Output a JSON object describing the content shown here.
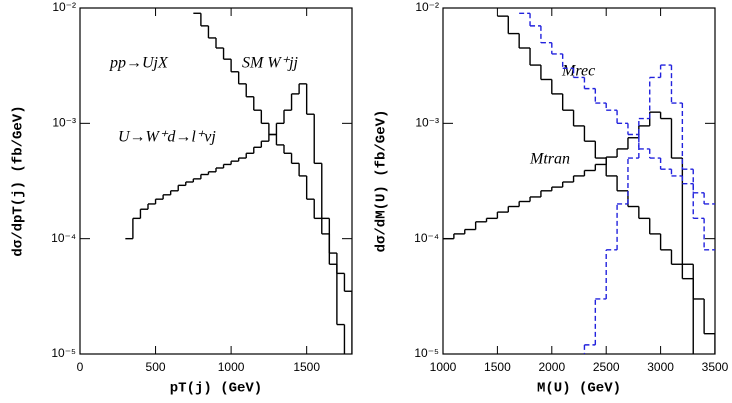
{
  "chart_data": [
    {
      "type": "histogram",
      "xlabel": "pT(j)  (GeV)",
      "ylabel": "dσ/dpT(j)   (fb/GeV)",
      "yscale": "log",
      "xlim": [
        0,
        1800
      ],
      "xticks": [
        0,
        500,
        1000,
        1500
      ],
      "ylim": [
        1e-05,
        0.01
      ],
      "yticks": [
        {
          "value": 1e-05,
          "label": "10⁻⁵"
        },
        {
          "value": 0.0001,
          "label": "10⁻⁴"
        },
        {
          "value": 0.001,
          "label": "10⁻³"
        },
        {
          "value": 0.01,
          "label": "10⁻²"
        }
      ],
      "annotations": [
        "pp→UjX"
      ],
      "bins": [
        300,
        350,
        400,
        450,
        500,
        550,
        600,
        650,
        700,
        750,
        800,
        850,
        900,
        950,
        1000,
        1050,
        1100,
        1150,
        1200,
        1250,
        1300,
        1350,
        1400,
        1450,
        1500,
        1550,
        1600,
        1650,
        1700,
        1750,
        1800
      ],
      "series": [
        {
          "name": "U→W⁺d→l⁺νj",
          "color": "#000000",
          "dashed": false,
          "values": [
            0.0001,
            0.00015,
            0.00018,
            0.0002,
            0.00022,
            0.00024,
            0.00026,
            0.00029,
            0.00031,
            0.00033,
            0.00036,
            0.00038,
            0.00041,
            0.00044,
            0.00047,
            0.0005,
            0.00055,
            0.00062,
            0.0007,
            0.0008,
            0.001,
            0.0013,
            0.0018,
            0.0022,
            0.0012,
            0.00045,
            0.00015,
            6e-05,
            1.8e-05,
            null
          ]
        },
        {
          "name": "SM W⁺jj",
          "color": "#000000",
          "dashed": false,
          "values": [
            null,
            null,
            null,
            null,
            null,
            null,
            null,
            null,
            null,
            0.009,
            0.007,
            0.0055,
            0.0045,
            0.0036,
            0.0028,
            0.0022,
            0.0017,
            0.0013,
            0.001,
            0.0008,
            0.00065,
            0.00055,
            0.00045,
            0.00035,
            0.00022,
            0.00015,
            0.00011,
            7.5e-05,
            5e-05,
            3.5e-05
          ]
        }
      ]
    },
    {
      "type": "histogram",
      "xlabel": "M(U)  (GeV)",
      "ylabel": "dσ/dM(U)   (fb/GeV)",
      "yscale": "log",
      "xlim": [
        1000,
        3500
      ],
      "xticks": [
        1000,
        1500,
        2000,
        2500,
        3000,
        3500
      ],
      "ylim": [
        1e-05,
        0.01
      ],
      "yticks": [
        {
          "value": 1e-05,
          "label": "10⁻⁵"
        },
        {
          "value": 0.0001,
          "label": "10⁻⁴"
        },
        {
          "value": 0.001,
          "label": "10⁻³"
        },
        {
          "value": 0.01,
          "label": "10⁻²"
        }
      ],
      "bins": [
        1000,
        1100,
        1200,
        1300,
        1400,
        1500,
        1600,
        1700,
        1800,
        1900,
        2000,
        2100,
        2200,
        2300,
        2400,
        2500,
        2600,
        2700,
        2800,
        2900,
        3000,
        3100,
        3200,
        3300,
        3400,
        3500
      ],
      "series": [
        {
          "name": "Mtran",
          "color": "#000000",
          "dashed": false,
          "values": [
            0.0001,
            0.00011,
            0.00012,
            0.00014,
            0.00015,
            0.00017,
            0.00019,
            0.00021,
            0.00023,
            0.00026,
            0.00028,
            0.00031,
            0.00035,
            0.00039,
            0.00044,
            0.00051,
            0.0006,
            0.00075,
            0.00095,
            0.00125,
            0.0011,
            0.0005,
            6e-05,
            null,
            null
          ]
        },
        {
          "color": "#000000",
          "dashed": false,
          "values": [
            null,
            null,
            null,
            null,
            null,
            0.0085,
            0.006,
            0.0045,
            0.0032,
            0.0024,
            0.0018,
            0.0013,
            0.00095,
            0.0007,
            0.0005,
            0.00035,
            0.00026,
            0.00019,
            0.00015,
            0.00011,
            8e-05,
            6e-05,
            4.5e-05,
            3e-05,
            1.5e-05
          ]
        },
        {
          "name": "Mrec",
          "color": "#2222dd",
          "dashed": true,
          "values": [
            null,
            null,
            null,
            null,
            null,
            null,
            null,
            null,
            null,
            null,
            null,
            null,
            null,
            1.2e-05,
            3e-05,
            8e-05,
            0.0002,
            0.0005,
            0.0011,
            0.0025,
            0.0032,
            0.0015,
            0.0004,
            0.00015,
            8e-05
          ]
        },
        {
          "color": "#2222dd",
          "dashed": true,
          "values": [
            null,
            null,
            null,
            null,
            null,
            null,
            null,
            0.009,
            0.007,
            0.005,
            0.004,
            0.003,
            0.0025,
            0.002,
            0.0015,
            0.0013,
            0.001,
            0.0008,
            0.0006,
            0.0005,
            0.0004,
            0.00035,
            0.0003,
            0.00025,
            0.0002
          ]
        }
      ]
    }
  ]
}
